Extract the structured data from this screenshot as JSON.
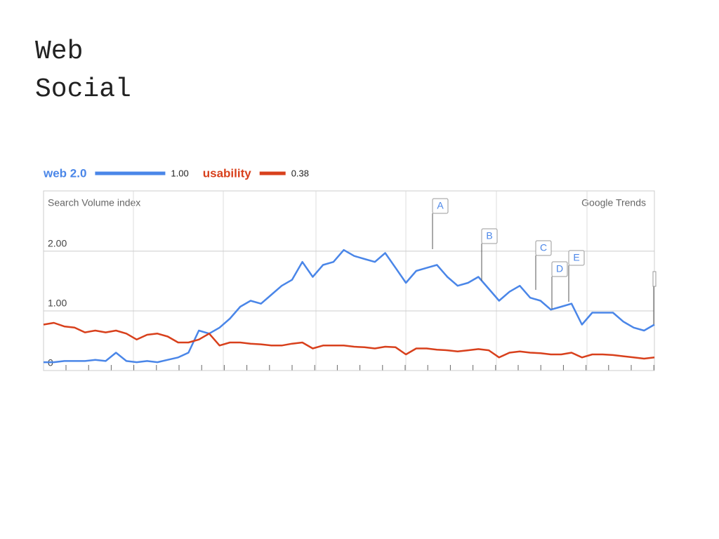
{
  "heading": [
    "Web",
    "Social"
  ],
  "chart_data": {
    "type": "line",
    "y_axis_label": "Search Volume index",
    "source": "Google Trends",
    "categories": [
      null,
      null,
      null,
      null,
      null,
      null,
      null,
      null,
      null,
      null,
      null,
      null,
      null,
      null,
      null,
      null,
      null,
      null,
      null,
      null,
      null,
      null,
      null,
      null,
      null,
      null,
      null,
      null,
      null,
      null,
      null,
      null,
      null,
      null,
      null,
      null,
      null,
      null,
      null,
      null,
      null,
      null,
      null,
      null,
      null,
      null,
      null,
      null,
      null,
      null,
      null,
      null,
      null,
      null,
      null,
      null,
      null,
      null,
      null,
      null
    ],
    "series": [
      {
        "name": "web 2.0",
        "color": "#4a86e8",
        "average": 1,
        "average_label": "1.00",
        "values": [
          0.14,
          0.14,
          0.16,
          0.16,
          0.16,
          0.18,
          0.16,
          0.3,
          0.16,
          0.14,
          0.16,
          0.14,
          0.18,
          0.22,
          0.3,
          0.67,
          0.62,
          0.72,
          0.87,
          1.07,
          1.17,
          1.12,
          1.27,
          1.42,
          1.52,
          1.82,
          1.57,
          1.77,
          1.82,
          2.02,
          1.92,
          1.87,
          1.82,
          1.97,
          1.72,
          1.47,
          1.67,
          1.72,
          1.77,
          1.57,
          1.42,
          1.47,
          1.57,
          1.37,
          1.17,
          1.32,
          1.42,
          1.22,
          1.17,
          1.02,
          1.07,
          1.12,
          0.77,
          0.97,
          0.97,
          0.97,
          0.82,
          0.72,
          0.67,
          0.77
        ]
      },
      {
        "name": "usability",
        "color": "#d8401c",
        "average": 0.38,
        "values": [
          0.77,
          0.8,
          0.74,
          0.72,
          0.64,
          0.67,
          0.64,
          0.67,
          0.62,
          0.52,
          0.6,
          0.62,
          0.57,
          0.47,
          0.47,
          0.52,
          0.62,
          0.42,
          0.47,
          0.47,
          0.45,
          0.44,
          0.42,
          0.42,
          0.45,
          0.47,
          0.37,
          0.42,
          0.42,
          0.42,
          0.4,
          0.39,
          0.37,
          0.4,
          0.39,
          0.27,
          0.37,
          0.37,
          0.35,
          0.34,
          0.32,
          0.34,
          0.36,
          0.34,
          0.22,
          0.3,
          0.32,
          0.3,
          0.29,
          0.27,
          0.27,
          0.3,
          0.22,
          0.27,
          0.27,
          0.26,
          0.24,
          0.22,
          0.2,
          0.22
        ]
      }
    ],
    "ylim": [
      0,
      3.01
    ],
    "yticks": [
      0,
      {
        "value": 1,
        "label": "1.00"
      },
      {
        "value": 2,
        "label": "2.00"
      }
    ],
    "grid": true,
    "annotations": [
      "A",
      "B",
      "C",
      "D",
      "E"
    ]
  }
}
